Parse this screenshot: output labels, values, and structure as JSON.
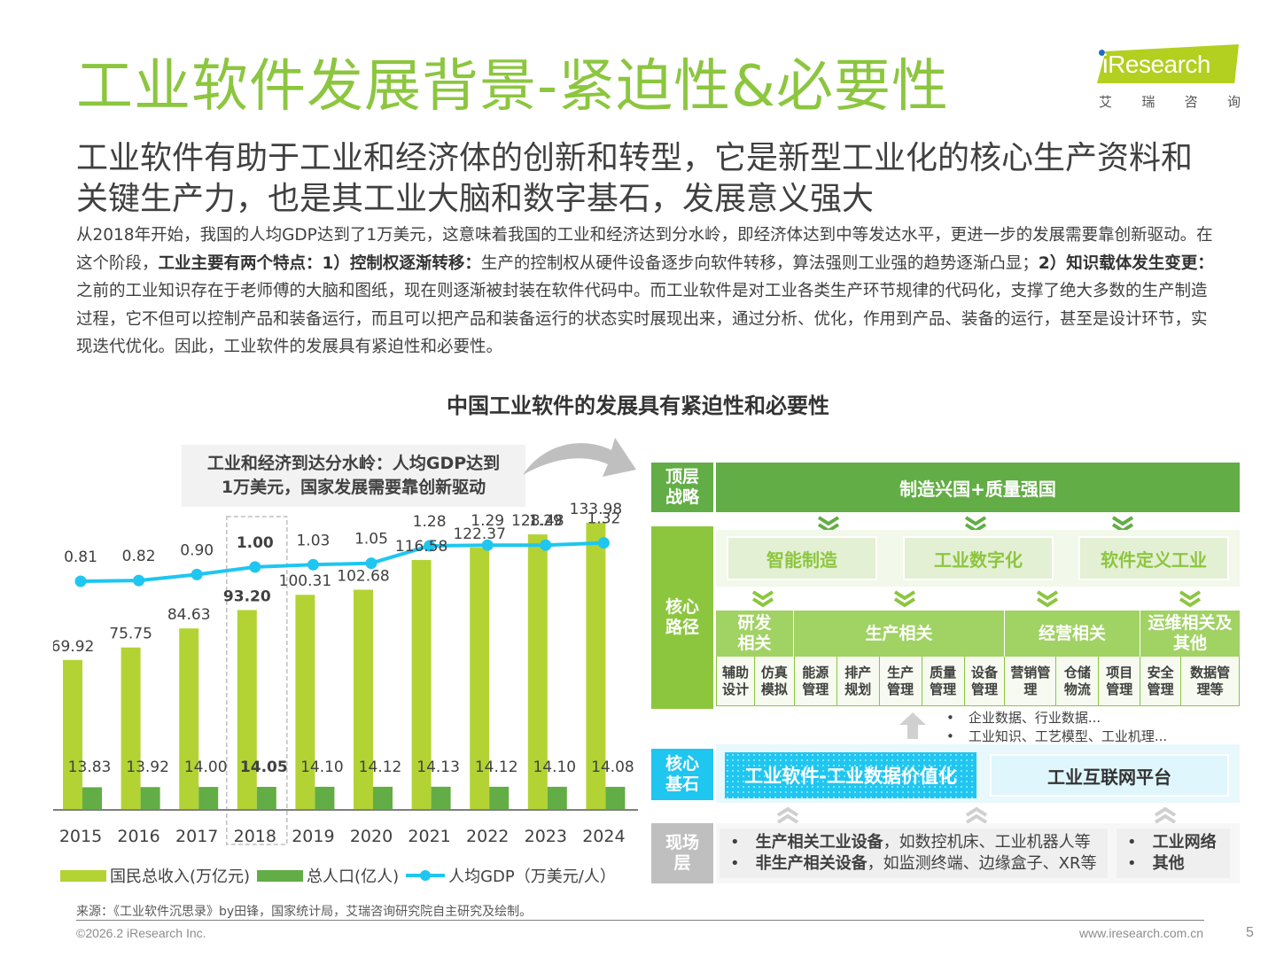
{
  "header": {
    "title": "工业软件发展背景-紧迫性&必要性",
    "logo_text": "Research",
    "logo_cn": [
      "艾",
      "瑞",
      "咨",
      "询"
    ]
  },
  "subtitle": "工业软件有助于工业和经济体的创新和转型，它是新型工业化的核心生产资料和关键生产力，也是其工业大脑和数字基石，发展意义强大",
  "body": {
    "p1": "从2018年开始，我国的人均GDP达到了1万美元，这意味着我国的工业和经济达到分水岭，即经济体达到中等发达水平，更进一步的发展需要靠创新驱动。在这个阶段，",
    "b1": "工业主要有两个特点：1）控制权逐渐转移：",
    "p2": "生产的控制权从硬件设备逐步向软件转移，算法强则工业强的趋势逐渐凸显；",
    "b2": "2）知识载体发生变更：",
    "p3": "之前的工业知识存在于老师傅的大脑和图纸，现在则逐渐被封装在软件代码中。而工业软件是对工业各类生产环节规律的代码化，支撑了绝大多数的生产制造过程，它不但可以控制产品和装备运行，而且可以把产品和装备运行的状态实时展现出来，通过分析、优化，作用到产品、装备的运行，甚至是设计环节，实现迭代优化。因此，工业软件的发展具有紧迫性和必要性。"
  },
  "section_title": "中国工业软件的发展具有紧迫性和必要性",
  "callout": {
    "line1": "工业和经济到达分水岭：人均GDP达到",
    "line2": "1万美元，国家发展需要靠创新驱动"
  },
  "chart_data": {
    "type": "bar",
    "title": "",
    "categories": [
      "2015",
      "2016",
      "2017",
      "2018",
      "2019",
      "2020",
      "2021",
      "2022",
      "2023",
      "2024"
    ],
    "highlight_category": "2018",
    "series": [
      {
        "name": "国民总收入(万亿元)",
        "type": "bar",
        "color": "#b3d335",
        "values": [
          69.92,
          75.75,
          84.63,
          93.2,
          100.31,
          102.68,
          116.58,
          122.37,
          128.48,
          133.98
        ]
      },
      {
        "name": "总人口(亿人)",
        "type": "bar",
        "color": "#62ad45",
        "values": [
          13.83,
          13.92,
          14.0,
          14.05,
          14.1,
          14.12,
          14.13,
          14.12,
          14.1,
          14.08
        ]
      },
      {
        "name": "人均GDP（万美元/人）",
        "type": "line",
        "color": "#1ec6f0",
        "values": [
          0.81,
          0.82,
          0.9,
          1.0,
          1.03,
          1.05,
          1.28,
          1.29,
          1.29,
          1.32
        ]
      }
    ],
    "value_labels": {
      "gni": [
        "69.92",
        "75.75",
        "84.63",
        "93.20",
        "100.31",
        "102.68",
        "116.58",
        "122.37",
        "128.48",
        "133.98"
      ],
      "pop": [
        "13.83",
        "13.92",
        "14.00",
        "14.05",
        "14.10",
        "14.12",
        "14.13",
        "14.12",
        "14.10",
        "14.08"
      ],
      "gdp": [
        "0.81",
        "0.82",
        "0.90",
        "1.00",
        "1.03",
        "1.05",
        "1.28",
        "1.29",
        "1.29",
        "1.32"
      ]
    },
    "xlabel": "",
    "ylabel": "",
    "grid": false,
    "legend": "bottom"
  },
  "legend": {
    "gni": "国民总收入(万亿元)",
    "pop": "总人口(亿人)",
    "gdp": "人均GDP（万美元/人）"
  },
  "diagram": {
    "top_label": "顶层\n战略",
    "top_strategy": "制造兴国+质量强国",
    "core_path_label": "核心\n路径",
    "paths": [
      "智能制造",
      "工业数字化",
      "软件定义工业"
    ],
    "categories": [
      {
        "label": "研发\n相关",
        "items": [
          "辅助\n设计",
          "仿真\n模拟"
        ]
      },
      {
        "label": "生产相关",
        "items": [
          "能源\n管理",
          "排产\n规划",
          "生产\n管理",
          "质量\n管理",
          "设备\n管理"
        ]
      },
      {
        "label": "经营相关",
        "items": [
          "营销管\n理",
          "仓储\n物流",
          "项目\n管理"
        ]
      },
      {
        "label": "运维相关及\n其他",
        "items": [
          "安全\n管理",
          "数据管\n理等"
        ]
      }
    ],
    "data_notes": [
      "企业数据、行业数据...",
      "工业知识、工艺模型、工业机理..."
    ],
    "core_base_label": "核心\n基石",
    "core_base": [
      "工业软件-工业数据价值化",
      "工业互联网平台"
    ],
    "field_label": "现场\n层",
    "field_left": [
      {
        "bold": "生产相关工业设备",
        "rest": "，如数控机床、工业机器人等"
      },
      {
        "bold": "非生产相关设备",
        "rest": "，如监测终端、边缘盒子、XR等"
      }
    ],
    "field_right": [
      "工业网络",
      "其他"
    ]
  },
  "footer": {
    "source": "来源：《工业软件沉思录》by田锋，国家统计局，艾瑞咨询研究院自主研究及绘制。",
    "copyright": "©2026.2 iResearch Inc.",
    "website": "www.iresearch.com.cn",
    "page": "5"
  }
}
